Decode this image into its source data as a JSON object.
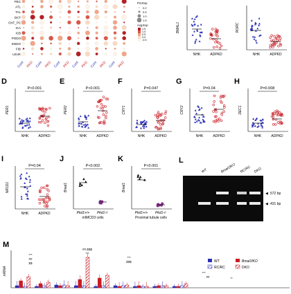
{
  "dotplot": {
    "rows": [
      "PEC",
      "ATL",
      "TAL",
      "DCT",
      "CNT_PC",
      "ICA",
      "ICB",
      "PODO",
      "ENDO",
      "FIB",
      "LEUK"
    ],
    "columns": [
      "Cont",
      "PKD",
      "Cont",
      "PKD",
      "Cont",
      "PKD",
      "Cont",
      "PKD",
      "Cont",
      "PKD",
      "Cont",
      "PKD"
    ],
    "legend_size_title": "Pct.Exp",
    "legend_size_values": [
      "0.0",
      "0.5",
      "1.0",
      "1.5"
    ],
    "legend_color_title": "Avg.Exp",
    "legend_color_values": [
      "1.5",
      "1.0",
      "0.5",
      "0.0",
      "-0.5"
    ]
  },
  "panels": {
    "D": {
      "label": "D",
      "ylabel": "PER1",
      "pvalue": "P<0.001",
      "groups": [
        "NHK",
        "ADPKD"
      ]
    },
    "E": {
      "label": "E",
      "ylabel": "PER2",
      "pvalue": "P<0.001",
      "groups": [
        "NHK",
        "ADPKD"
      ]
    },
    "F": {
      "label": "F",
      "ylabel": "CRY1",
      "pvalue": "P=0.047",
      "groups": [
        "NHK",
        "ADPKD"
      ]
    },
    "G": {
      "label": "G",
      "ylabel": "CRY2",
      "pvalue": "P=0.04",
      "groups": [
        "NHK",
        "ADPKD"
      ]
    },
    "H": {
      "label": "H",
      "ylabel": "DEC1",
      "pvalue": "P=0.008",
      "groups": [
        "NHK",
        "ADPKD"
      ]
    },
    "I": {
      "label": "I",
      "ylabel": "NR1D1",
      "pvalue": "P=0.04",
      "groups": [
        "NHK",
        "ADPKD"
      ]
    },
    "J": {
      "label": "J",
      "ylabel": "Bmal1",
      "pvalue": "P<0.002",
      "groups": [
        "Pkd1+/+",
        "Pkd1-/-"
      ],
      "caption": "mIMCD3 cells"
    },
    "K": {
      "label": "K",
      "ylabel": "Bmal1",
      "pvalue": "P<0.001",
      "groups": [
        "Pkd1+/+",
        "Pkd1-/-"
      ],
      "caption": "Proximal tubule cells"
    },
    "BMAL1": {
      "ylabel": "BMAL1",
      "groups": [
        "NHK",
        "ADPKD"
      ]
    },
    "RORC": {
      "ylabel": "RORC",
      "groups": [
        "NHK",
        "ADPKD"
      ]
    }
  },
  "gel": {
    "label": "L",
    "lanes": [
      "WT",
      "Bmal1fKO",
      "RC/RC",
      "DKO"
    ],
    "bands": [
      "572 bp",
      "431 bp"
    ]
  },
  "barchart": {
    "label": "M",
    "ylabel": "mRNA",
    "legend": [
      "WT",
      "Bmal1fKO",
      "RC/RC",
      "DKO"
    ],
    "annotations": [
      "***",
      "##",
      "$$",
      "***",
      "##,$$$",
      "***",
      "$$$",
      "***",
      "##",
      "**"
    ]
  },
  "colors": {
    "nhk_blue": "#2a2fb5",
    "adpkd_red": "#c81d25",
    "purple": "#8b2f8f",
    "gel_bg": "#0b0b0b",
    "gel_band": "#f0f0f0"
  }
}
